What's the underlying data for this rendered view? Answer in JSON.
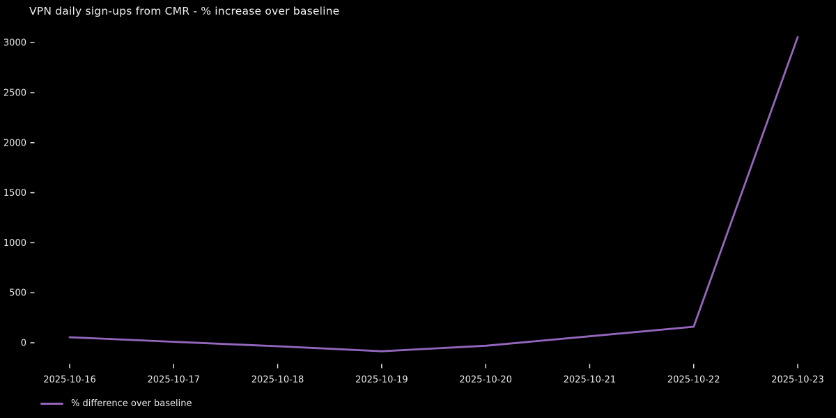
{
  "page": {
    "background": "#000000",
    "text_color": "#e6e6e6"
  },
  "title": "VPN daily sign-ups from CMR - % increase over baseline",
  "legend": {
    "label": "% difference over baseline",
    "swatch_color": "#9467bd"
  },
  "chart_data": {
    "type": "line",
    "title": "VPN daily sign-ups from CMR - % increase over baseline",
    "x": [
      "2025-10-16",
      "2025-10-17",
      "2025-10-18",
      "2025-10-19",
      "2025-10-20",
      "2025-10-21",
      "2025-10-22",
      "2025-10-23"
    ],
    "series": [
      {
        "name": "% difference over baseline",
        "color": "#9467bd",
        "values": [
          55,
          10,
          -35,
          -85,
          -30,
          65,
          160,
          3055
        ]
      }
    ],
    "xlabel": "",
    "ylabel": "",
    "yticks": [
      0,
      500,
      1000,
      1500,
      2000,
      2500,
      3000
    ],
    "ylim": [
      -240,
      3215
    ],
    "grid": false,
    "legend_position": "bottom-left",
    "background": "#000000",
    "tick_color": "#e6e6e6"
  }
}
